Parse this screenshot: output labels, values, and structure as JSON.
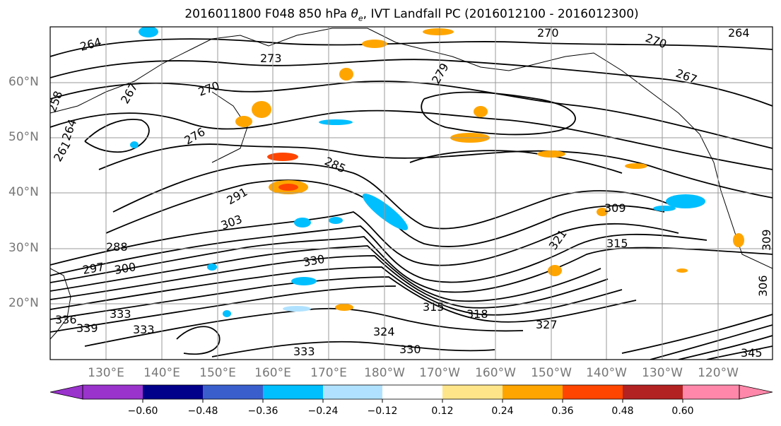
{
  "title_prefix": "2016011800 F048 850 hPa ",
  "title_theta": "θ",
  "title_sub": "e",
  "title_suffix": ", IVT Landfall PC (2016012100 - 2016012300)",
  "lat_labels": [
    "60°N",
    "50°N",
    "40°N",
    "30°N",
    "20°N"
  ],
  "lon_labels": [
    "130°E",
    "140°E",
    "150°E",
    "160°E",
    "170°E",
    "180°W",
    "170°W",
    "160°W",
    "150°W",
    "140°W",
    "130°W",
    "120°W"
  ],
  "colorbar": {
    "tick_labels": [
      "−0.60",
      "−0.48",
      "−0.36",
      "−0.24",
      "−0.12",
      "0.12",
      "0.24",
      "0.36",
      "0.48",
      "0.60"
    ],
    "colors": [
      "#9933cc",
      "#00008b",
      "#3a5fcd",
      "#00bfff",
      "#b0e2ff",
      "#ffffff",
      "#ffe58a",
      "#ffa500",
      "#ff4500",
      "#b22222",
      "#ff88aa"
    ]
  },
  "contour_labels": [
    "264",
    "273",
    "267",
    "270",
    "279",
    "270",
    "270",
    "264",
    "258",
    "264",
    "261",
    "276",
    "285",
    "291",
    "303",
    "309",
    "321",
    "315",
    "330",
    "297",
    "300",
    "288",
    "336",
    "339",
    "333",
    "333",
    "324",
    "330",
    "315",
    "318",
    "327",
    "333",
    "345",
    "306",
    "309",
    "267"
  ]
}
